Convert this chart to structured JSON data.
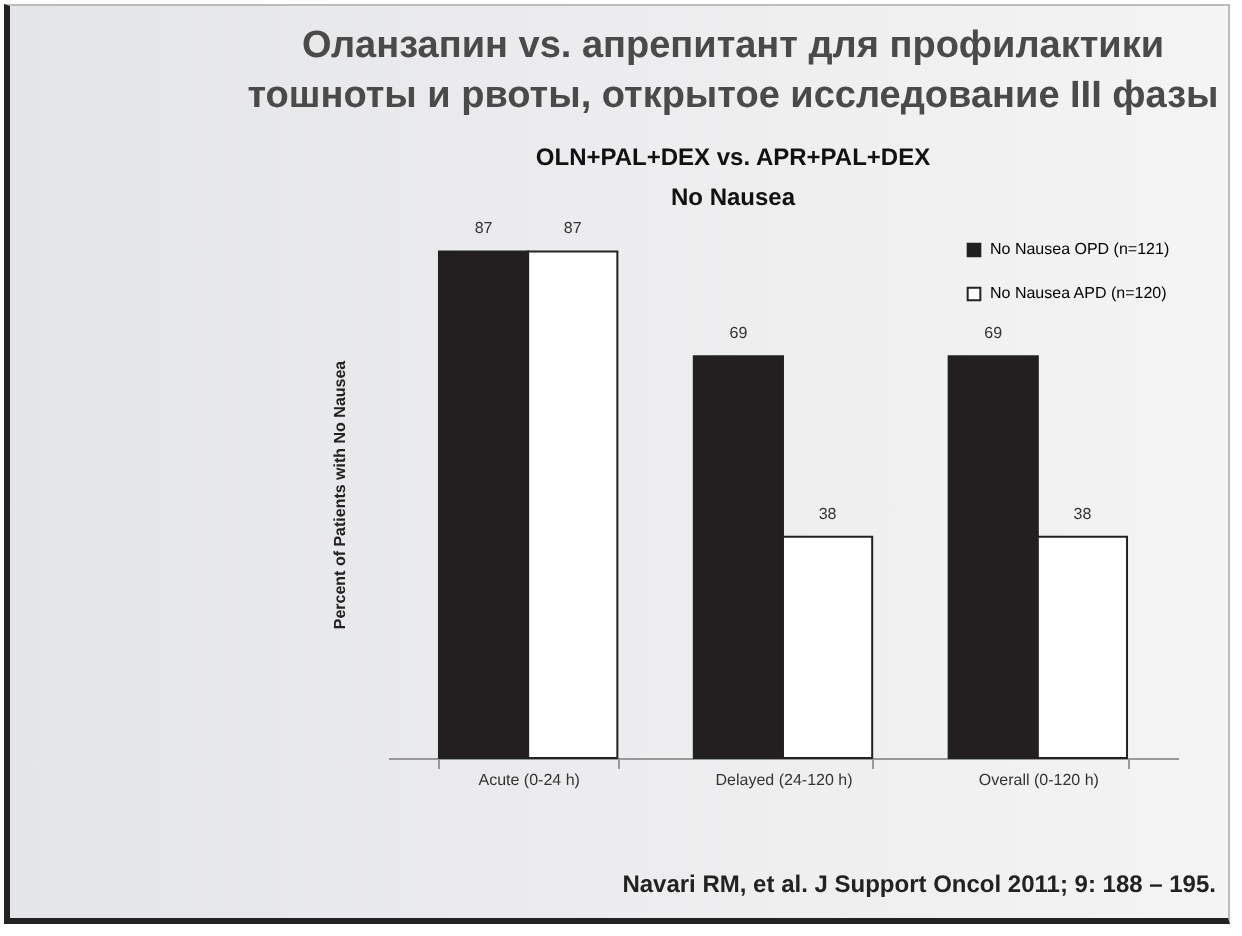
{
  "chart_data": {
    "type": "bar",
    "title": "Оланзапин vs. апрепитант для профилактики\nтошноты и рвоты, открытое исследование III фазы",
    "subtitle": "OLN+PAL+DEX vs. APR+PAL+DEX\nNo Nausea",
    "ylabel": "Percent of Patients with No Nausea",
    "categories": [
      "Acute (0-24 h)",
      "Delayed (24-120 h)",
      "Overall (0-120 h)"
    ],
    "series": [
      {
        "name": "No Nausea OPD (n=121)",
        "color": "#231f20",
        "values": [
          87,
          69,
          69
        ]
      },
      {
        "name": "No Nausea APD (n=120)",
        "color": "#ffffff",
        "values": [
          87,
          38,
          38
        ]
      }
    ],
    "data_labels": true,
    "legend": "top right",
    "tick_labels": "x",
    "grid": false,
    "annotations": [
      "Navari RM, et al. J Support Oncol 2011; 9: 188 – 195."
    ]
  }
}
